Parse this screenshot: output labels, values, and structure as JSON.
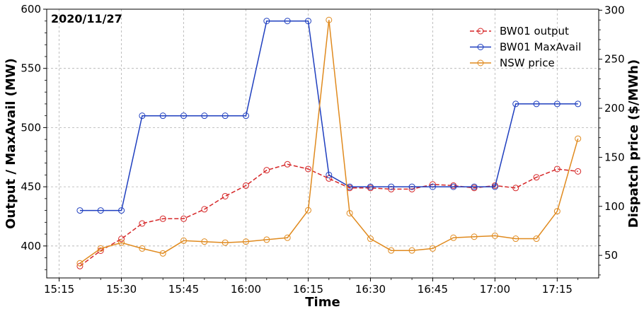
{
  "chart_data": {
    "type": "line",
    "annotation": "2020/11/27",
    "xlabel": "Time",
    "ylabel_left": "Output / MaxAvail (MW)",
    "ylabel_right": "Dispatch price ($/MWh)",
    "x_ticks": [
      "15:15",
      "15:30",
      "15:45",
      "16:00",
      "16:15",
      "16:30",
      "16:45",
      "17:00",
      "17:15"
    ],
    "y_left_ticks": [
      "400",
      "450",
      "500",
      "550",
      "600"
    ],
    "y_right_ticks": [
      "50",
      "100",
      "150",
      "200",
      "250",
      "300"
    ],
    "y_left_lim": [
      373,
      600
    ],
    "y_right_lim": [
      27,
      301
    ],
    "grid": true,
    "legend_position": "top-right",
    "x": [
      "15:20",
      "15:25",
      "15:30",
      "15:35",
      "15:40",
      "15:45",
      "15:50",
      "15:55",
      "16:00",
      "16:05",
      "16:10",
      "16:15",
      "16:20",
      "16:25",
      "16:30",
      "16:35",
      "16:40",
      "16:45",
      "16:50",
      "16:55",
      "17:00",
      "17:05",
      "17:10",
      "17:15",
      "17:20"
    ],
    "series": [
      {
        "name": "BW01 output",
        "axis": "left",
        "color": "#d62728",
        "style": "dashed",
        "values": [
          383,
          396,
          406,
          419,
          423,
          423,
          431,
          442,
          451,
          464,
          469,
          465,
          457,
          449,
          449,
          448,
          448,
          452,
          451,
          449,
          451,
          449,
          458,
          465,
          463
        ]
      },
      {
        "name": "BW01 MaxAvail",
        "axis": "left",
        "color": "#1f3fbf",
        "style": "solid",
        "values": [
          430,
          430,
          430,
          510,
          510,
          510,
          510,
          510,
          510,
          590,
          590,
          590,
          460,
          450,
          450,
          450,
          450,
          450,
          450,
          450,
          450,
          520,
          520,
          520,
          520
        ]
      },
      {
        "name": "NSW price",
        "axis": "right",
        "color": "#e08a1e",
        "style": "solid",
        "values": [
          42,
          57,
          63,
          57,
          52,
          65,
          64,
          63,
          64,
          66,
          68,
          96,
          290,
          93,
          67,
          55,
          55,
          57,
          68,
          69,
          70,
          67,
          67,
          95,
          169
        ]
      }
    ]
  }
}
